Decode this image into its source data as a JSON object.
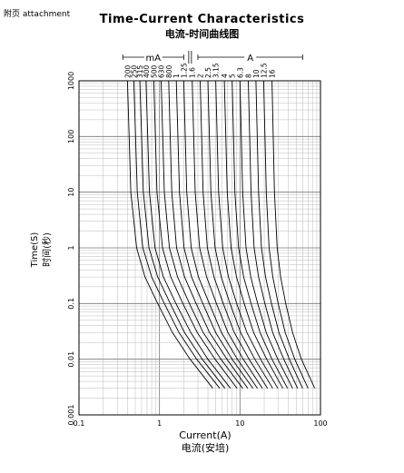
{
  "header": {
    "corner_label": "附页 attachment",
    "title": "Time-Current Characteristics",
    "subtitle": "电流-时间曲线图"
  },
  "chart_data": {
    "type": "line",
    "xscale": "log",
    "yscale": "log",
    "xlim": [
      0.1,
      100
    ],
    "ylim": [
      0.001,
      1000
    ],
    "grid": true,
    "x_ticks": [
      "0.1",
      "1",
      "10",
      "100"
    ],
    "y_ticks": [
      "0.001",
      "0.01",
      "0.1",
      "1",
      "10",
      "100",
      "1000"
    ],
    "xlabel": "Current(A)",
    "xlabel_cn": "电流(安培)",
    "ylabel": "Time(S)",
    "ylabel_cn": "时间(秒)",
    "group_labels": [
      {
        "text": "mA",
        "range": [
          0.35,
          2.0
        ]
      },
      {
        "text": "A",
        "range": [
          3.0,
          60
        ]
      }
    ],
    "curve_labels": [
      "200",
      "250",
      "315",
      "400",
      "500",
      "630",
      "800",
      "1",
      "1.25",
      "1.6",
      "2",
      "2.5",
      "3.15",
      "4",
      "5",
      "6.3",
      "8",
      "10",
      "12.5",
      "16"
    ],
    "series": [
      {
        "name": "200",
        "x": [
          0.4,
          0.44,
          0.52,
          0.66,
          0.95,
          1.45,
          2.4,
          4.6
        ],
        "y": [
          1000,
          10,
          1,
          0.3,
          0.1,
          0.03,
          0.01,
          0.003
        ]
      },
      {
        "name": "250",
        "x": [
          0.48,
          0.53,
          0.62,
          0.8,
          1.15,
          1.75,
          2.9,
          5.6
        ],
        "y": [
          1000,
          10,
          1,
          0.3,
          0.1,
          0.03,
          0.01,
          0.003
        ]
      },
      {
        "name": "315",
        "x": [
          0.57,
          0.63,
          0.74,
          0.95,
          1.36,
          2.05,
          3.4,
          6.5
        ],
        "y": [
          1000,
          10,
          1,
          0.3,
          0.1,
          0.03,
          0.01,
          0.003
        ]
      },
      {
        "name": "400",
        "x": [
          0.68,
          0.75,
          0.88,
          1.12,
          1.6,
          2.45,
          4.0,
          7.6
        ],
        "y": [
          1000,
          10,
          1,
          0.3,
          0.1,
          0.03,
          0.01,
          0.003
        ]
      },
      {
        "name": "500",
        "x": [
          0.85,
          0.93,
          1.09,
          1.38,
          1.95,
          2.95,
          4.9,
          9.2
        ],
        "y": [
          1000,
          10,
          1,
          0.3,
          0.1,
          0.03,
          0.01,
          0.003
        ]
      },
      {
        "name": "630",
        "x": [
          1.05,
          1.15,
          1.33,
          1.68,
          2.35,
          3.5,
          5.8,
          10.8
        ],
        "y": [
          1000,
          10,
          1,
          0.3,
          0.1,
          0.03,
          0.01,
          0.003
        ]
      },
      {
        "name": "800",
        "x": [
          1.3,
          1.42,
          1.63,
          2.05,
          2.85,
          4.2,
          6.9,
          12.5
        ],
        "y": [
          1000,
          10,
          1,
          0.3,
          0.1,
          0.03,
          0.01,
          0.003
        ]
      },
      {
        "name": "1",
        "x": [
          1.62,
          1.77,
          2.02,
          2.5,
          3.45,
          5.0,
          8.0,
          14.5
        ],
        "y": [
          1000,
          10,
          1,
          0.3,
          0.1,
          0.03,
          0.01,
          0.003
        ]
      },
      {
        "name": "1.25",
        "x": [
          2.0,
          2.18,
          2.48,
          3.05,
          4.15,
          5.9,
          9.3,
          16.5
        ],
        "y": [
          1000,
          10,
          1,
          0.3,
          0.1,
          0.03,
          0.01,
          0.003
        ]
      },
      {
        "name": "1.6",
        "x": [
          2.55,
          2.78,
          3.15,
          3.85,
          5.1,
          7.1,
          11.0,
          19.0
        ],
        "y": [
          1000,
          10,
          1,
          0.3,
          0.1,
          0.03,
          0.01,
          0.003
        ]
      },
      {
        "name": "2",
        "x": [
          3.2,
          3.48,
          3.93,
          4.75,
          6.2,
          8.5,
          13.0,
          22.0
        ],
        "y": [
          1000,
          10,
          1,
          0.3,
          0.1,
          0.03,
          0.01,
          0.003
        ]
      },
      {
        "name": "2.5",
        "x": [
          4.0,
          4.35,
          4.9,
          5.85,
          7.5,
          10.2,
          15.3,
          25.5
        ],
        "y": [
          1000,
          10,
          1,
          0.3,
          0.1,
          0.03,
          0.01,
          0.003
        ]
      },
      {
        "name": "3.15",
        "x": [
          5.0,
          5.43,
          6.1,
          7.2,
          9.1,
          12.2,
          18.0,
          29.5
        ],
        "y": [
          1000,
          10,
          1,
          0.3,
          0.1,
          0.03,
          0.01,
          0.003
        ]
      },
      {
        "name": "4",
        "x": [
          6.4,
          6.95,
          7.75,
          9.05,
          11.3,
          14.8,
          21.5,
          34.0
        ],
        "y": [
          1000,
          10,
          1,
          0.3,
          0.1,
          0.03,
          0.01,
          0.003
        ]
      },
      {
        "name": "5",
        "x": [
          8.0,
          8.65,
          9.6,
          11.1,
          13.7,
          17.8,
          25.0,
          39.0
        ],
        "y": [
          1000,
          10,
          1,
          0.3,
          0.1,
          0.03,
          0.01,
          0.003
        ]
      },
      {
        "name": "6.3",
        "x": [
          10.0,
          10.8,
          11.9,
          13.6,
          16.6,
          21.2,
          29.5,
          45.0
        ],
        "y": [
          1000,
          10,
          1,
          0.3,
          0.1,
          0.03,
          0.01,
          0.003
        ]
      },
      {
        "name": "8",
        "x": [
          12.7,
          13.7,
          15.0,
          17.0,
          20.4,
          25.5,
          35.0,
          52.0
        ],
        "y": [
          1000,
          10,
          1,
          0.3,
          0.1,
          0.03,
          0.01,
          0.003
        ]
      },
      {
        "name": "10",
        "x": [
          15.8,
          17.0,
          18.5,
          20.8,
          24.6,
          30.5,
          41.0,
          60.0
        ],
        "y": [
          1000,
          10,
          1,
          0.3,
          0.1,
          0.03,
          0.01,
          0.003
        ]
      },
      {
        "name": "12.5",
        "x": [
          19.7,
          21.2,
          23.0,
          25.6,
          29.8,
          36.5,
          48.0,
          70.0
        ],
        "y": [
          1000,
          10,
          1,
          0.3,
          0.1,
          0.03,
          0.01,
          0.003
        ]
      },
      {
        "name": "16",
        "x": [
          25.0,
          26.8,
          29.0,
          32.0,
          37.0,
          45.0,
          58.0,
          85.0
        ],
        "y": [
          1000,
          10,
          1,
          0.3,
          0.1,
          0.03,
          0.01,
          0.003
        ]
      }
    ]
  }
}
